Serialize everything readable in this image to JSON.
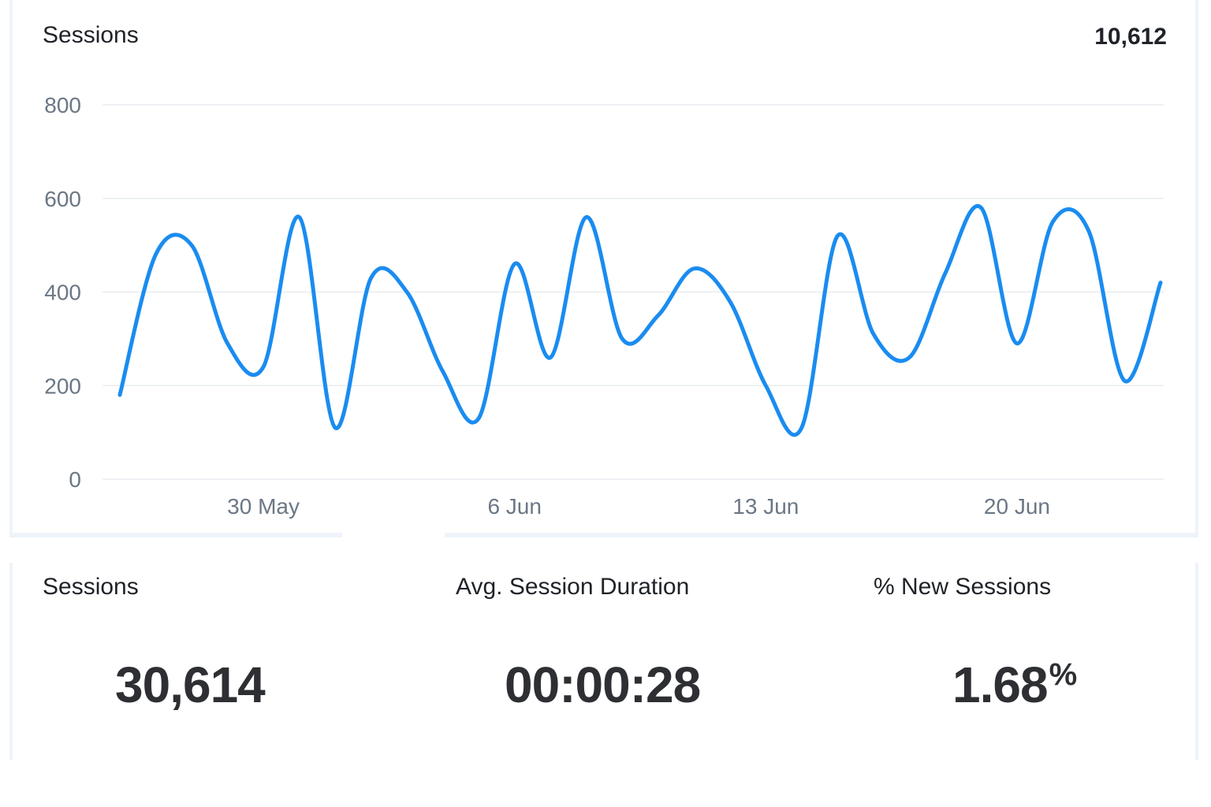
{
  "chart_card": {
    "title": "Sessions",
    "total": "10,612"
  },
  "colors": {
    "line": "#1a8cf0",
    "grid": "#e8ecf0",
    "axis_text": "#6b7785",
    "card_border": "#eef4f9"
  },
  "chart_data": {
    "type": "line",
    "title": "",
    "xlabel": "",
    "ylabel": "",
    "ylim": [
      0,
      800
    ],
    "y_ticks": [
      "0",
      "200",
      "400",
      "600",
      "800"
    ],
    "x_tick_labels": [
      "30 May",
      "6 Jun",
      "13 Jun",
      "20 Jun"
    ],
    "x_tick_dates": [
      "30 May",
      "6 Jun",
      "13 Jun",
      "20 Jun"
    ],
    "grid": true,
    "series": [
      {
        "dates": [
          "26 May",
          "27 May",
          "28 May",
          "29 May",
          "30 May",
          "31 May",
          "1 Jun",
          "2 Jun",
          "3 Jun",
          "4 Jun",
          "5 Jun",
          "6 Jun",
          "7 Jun",
          "8 Jun",
          "9 Jun",
          "10 Jun",
          "11 Jun",
          "12 Jun",
          "13 Jun",
          "14 Jun",
          "15 Jun",
          "16 Jun",
          "17 Jun",
          "18 Jun",
          "19 Jun",
          "20 Jun",
          "21 Jun",
          "22 Jun",
          "23 Jun",
          "24 Jun"
        ],
        "values": [
          180,
          480,
          500,
          290,
          240,
          560,
          110,
          430,
          400,
          230,
          130,
          460,
          260,
          560,
          300,
          350,
          450,
          380,
          200,
          110,
          520,
          310,
          260,
          440,
          580,
          290,
          550,
          530,
          210,
          420
        ]
      }
    ]
  },
  "stats": [
    {
      "label": "Sessions",
      "value": "30,614",
      "unit": ""
    },
    {
      "label": "Avg. Session Duration",
      "value": "00:00:28",
      "unit": ""
    },
    {
      "label": "% New Sessions",
      "value": "1.68",
      "unit": "%"
    }
  ]
}
